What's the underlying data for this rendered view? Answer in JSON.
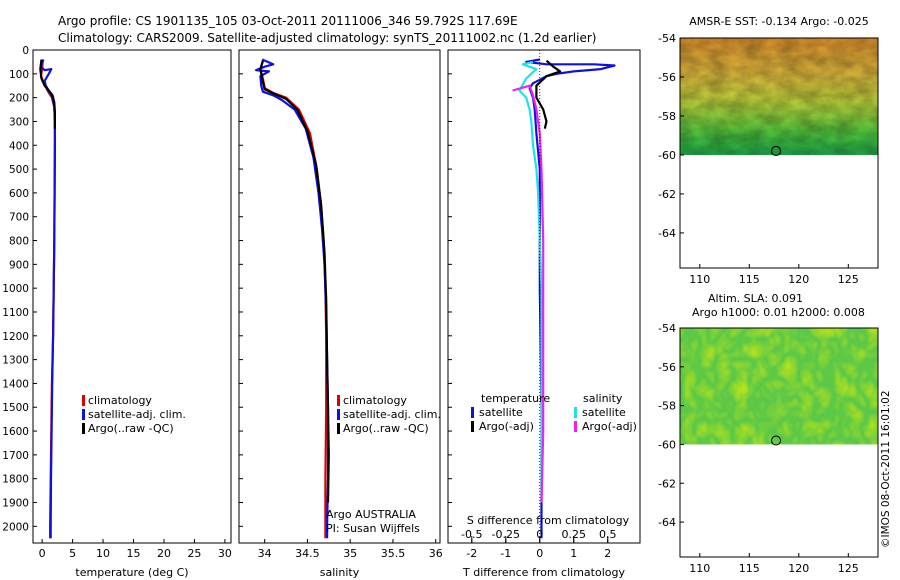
{
  "title_line1": "Argo profile: CS 1901135_105 03-Oct-2011 20111006_346 59.792S 117.69E",
  "title_line2": "Climatology: CARS2009. Satellite-adjusted climatology: synTS_20111002.nc (1.2d earlier)",
  "side_stamp": "©IMOS 08-Oct-2011 16:01:02",
  "info_argo": "Argo AUSTRALIA",
  "info_pi": "PI: Susan Wijffels",
  "colors": {
    "red": "#dd0000",
    "blue": "#1010dd",
    "black": "#000000",
    "cyan": "#20e0e8",
    "magenta": "#ee22ee"
  },
  "chart_data": [
    {
      "type": "line",
      "panel": "temperature",
      "xlabel": "temperature (deg C)",
      "xlim": [
        -1.5,
        31
      ],
      "xticks": [
        0,
        5,
        10,
        15,
        20,
        25,
        30
      ],
      "ylim": [
        0,
        2070
      ],
      "yticks": [
        0,
        100,
        200,
        300,
        400,
        500,
        600,
        700,
        800,
        900,
        1000,
        1100,
        1200,
        1300,
        1400,
        1500,
        1600,
        1700,
        1800,
        1900,
        2000
      ],
      "legend": [
        "climatology",
        "satellite-adj. clim.",
        "Argo(..raw -QC)"
      ],
      "series": [
        {
          "name": "climatology",
          "color": "red",
          "points": [
            [
              0.1,
              45
            ],
            [
              0.0,
              80
            ],
            [
              -0.2,
              110
            ],
            [
              0.5,
              150
            ],
            [
              1.0,
              175
            ],
            [
              1.6,
              200
            ],
            [
              2.0,
              240
            ],
            [
              2.1,
              300
            ],
            [
              2.1,
              400
            ],
            [
              2.05,
              600
            ],
            [
              2.0,
              800
            ],
            [
              1.9,
              1000
            ],
            [
              1.8,
              1200
            ],
            [
              1.6,
              1400
            ],
            [
              1.5,
              1600
            ],
            [
              1.4,
              1800
            ],
            [
              1.3,
              2000
            ],
            [
              1.3,
              2050
            ]
          ]
        },
        {
          "name": "satellite-adj. clim.",
          "color": "blue",
          "points": [
            [
              0.2,
              40
            ],
            [
              -0.2,
              70
            ],
            [
              0.4,
              85
            ],
            [
              1.5,
              80
            ],
            [
              1.1,
              100
            ],
            [
              0.4,
              130
            ],
            [
              0.6,
              150
            ],
            [
              1.2,
              175
            ],
            [
              1.7,
              200
            ],
            [
              2.0,
              240
            ],
            [
              2.1,
              300
            ],
            [
              2.1,
              400
            ],
            [
              2.05,
              600
            ],
            [
              2.0,
              800
            ],
            [
              1.9,
              1000
            ],
            [
              1.8,
              1200
            ],
            [
              1.65,
              1400
            ],
            [
              1.55,
              1600
            ],
            [
              1.45,
              1800
            ],
            [
              1.4,
              2000
            ],
            [
              1.4,
              2050
            ]
          ]
        },
        {
          "name": "Argo(..raw -QC)",
          "color": "black",
          "points": [
            [
              -0.1,
              40
            ],
            [
              -0.3,
              80
            ],
            [
              -0.1,
              120
            ],
            [
              0.4,
              150
            ],
            [
              1.1,
              170
            ],
            [
              1.7,
              190
            ],
            [
              2.0,
              220
            ],
            [
              2.1,
              260
            ],
            [
              2.1,
              330
            ]
          ]
        }
      ]
    },
    {
      "type": "line",
      "panel": "salinity",
      "xlabel": "salinity",
      "xlim": [
        33.7,
        36.05
      ],
      "xticks": [
        34,
        34.5,
        35,
        35.5,
        36
      ],
      "ylim": [
        0,
        2070
      ],
      "legend": [
        "climatology",
        "satellite-adj. clim.",
        "Argo(..raw -QC)"
      ],
      "series": [
        {
          "name": "climatology",
          "color": "red",
          "points": [
            [
              33.98,
              45
            ],
            [
              33.95,
              80
            ],
            [
              33.98,
              120
            ],
            [
              34.0,
              160
            ],
            [
              34.1,
              180
            ],
            [
              34.25,
              200
            ],
            [
              34.4,
              250
            ],
            [
              34.53,
              350
            ],
            [
              34.61,
              500
            ],
            [
              34.66,
              650
            ],
            [
              34.69,
              800
            ],
            [
              34.71,
              1000
            ],
            [
              34.72,
              1200
            ],
            [
              34.72,
              1500
            ],
            [
              34.71,
              1800
            ],
            [
              34.71,
              2000
            ],
            [
              34.71,
              2050
            ]
          ]
        },
        {
          "name": "satellite-adj. clim.",
          "color": "blue",
          "points": [
            [
              33.97,
              40
            ],
            [
              34.1,
              60
            ],
            [
              34.0,
              70
            ],
            [
              33.9,
              85
            ],
            [
              34.05,
              90
            ],
            [
              33.95,
              110
            ],
            [
              33.96,
              150
            ],
            [
              33.98,
              175
            ],
            [
              34.1,
              190
            ],
            [
              34.2,
              210
            ],
            [
              34.35,
              250
            ],
            [
              34.48,
              330
            ],
            [
              34.57,
              450
            ],
            [
              34.63,
              600
            ],
            [
              34.67,
              750
            ],
            [
              34.7,
              900
            ],
            [
              34.72,
              1100
            ],
            [
              34.73,
              1300
            ],
            [
              34.74,
              1500
            ],
            [
              34.74,
              1800
            ],
            [
              34.73,
              2000
            ],
            [
              34.73,
              2050
            ]
          ]
        },
        {
          "name": "Argo(..raw -QC)",
          "color": "black",
          "points": [
            [
              33.98,
              45
            ],
            [
              33.95,
              80
            ],
            [
              33.97,
              120
            ],
            [
              34.0,
              165
            ],
            [
              34.12,
              185
            ],
            [
              34.25,
              205
            ],
            [
              34.38,
              250
            ],
            [
              34.5,
              340
            ],
            [
              34.6,
              480
            ],
            [
              34.66,
              650
            ],
            [
              34.7,
              850
            ],
            [
              34.72,
              1050
            ],
            [
              34.73,
              1300
            ],
            [
              34.74,
              1500
            ],
            [
              34.75,
              1700
            ],
            [
              34.74,
              1900
            ]
          ]
        }
      ]
    },
    {
      "type": "line",
      "panel": "difference",
      "xlabel": "T difference from climatology",
      "xlabel_top": "S difference from climatology",
      "xlim_T": [
        -2.7,
        2.95
      ],
      "xticks_T": [
        -2,
        -1,
        0,
        1,
        2
      ],
      "xticks_S": [
        -0.5,
        -0.25,
        0,
        0.25,
        0.5
      ],
      "s_per_t": 0.25,
      "ylim": [
        0,
        2070
      ],
      "legend_headers": [
        "temperature",
        "salinity"
      ],
      "legend": [
        "satellite",
        "Argo(-adj)",
        "satellite",
        "Argo(-adj)"
      ],
      "series": [
        {
          "name": "temperature satellite",
          "color": "blue",
          "points": [
            [
              0,
              40
            ],
            [
              -0.4,
              50
            ],
            [
              0.2,
              60
            ],
            [
              0.6,
              60
            ],
            [
              1.6,
              60
            ],
            [
              2.2,
              65
            ],
            [
              1.8,
              80
            ],
            [
              1.0,
              90
            ],
            [
              0.5,
              100
            ],
            [
              0.2,
              110
            ],
            [
              -0.2,
              140
            ],
            [
              -0.3,
              160
            ],
            [
              -0.2,
              200
            ],
            [
              -0.15,
              250
            ],
            [
              -0.1,
              350
            ],
            [
              0.0,
              500
            ],
            [
              0.0,
              1000
            ],
            [
              0.05,
              1500
            ],
            [
              0.05,
              2000
            ],
            [
              0.05,
              2050
            ]
          ]
        },
        {
          "name": "temperature Argo(-adj)",
          "color": "black",
          "points": [
            [
              0.2,
              45
            ],
            [
              0.4,
              70
            ],
            [
              0.6,
              90
            ],
            [
              0.2,
              110
            ],
            [
              -0.1,
              150
            ],
            [
              -0.1,
              200
            ],
            [
              0.1,
              250
            ],
            [
              0.2,
              300
            ],
            [
              0.15,
              330
            ]
          ]
        },
        {
          "name": "salinity satellite",
          "color": "cyan",
          "points": [
            [
              -0.2,
              50
            ],
            [
              -0.5,
              60
            ],
            [
              -0.1,
              80
            ],
            [
              -0.4,
              120
            ],
            [
              -0.6,
              170
            ],
            [
              -0.4,
              200
            ],
            [
              -0.3,
              250
            ],
            [
              -0.25,
              300
            ],
            [
              -0.2,
              400
            ],
            [
              -0.1,
              500
            ],
            [
              -0.05,
              600
            ],
            [
              0.0,
              800
            ],
            [
              0.05,
              1000
            ],
            [
              0.05,
              1500
            ],
            [
              0.05,
              1900
            ]
          ]
        },
        {
          "name": "salinity Argo(-adj)",
          "color": "magenta",
          "points": [
            [
              -0.8,
              170
            ],
            [
              -0.3,
              150
            ],
            [
              -0.2,
              190
            ],
            [
              -0.1,
              250
            ],
            [
              0.0,
              350
            ],
            [
              0.05,
              500
            ],
            [
              0.1,
              800
            ],
            [
              0.1,
              1200
            ],
            [
              0.1,
              1600
            ],
            [
              0.05,
              1900
            ]
          ]
        }
      ]
    },
    {
      "type": "heatmap",
      "panel": "sst-map",
      "title": "AMSR-E SST: -0.134 Argo: -0.025",
      "xlim": [
        108,
        128
      ],
      "ylim": [
        -65.8,
        -54
      ],
      "xticks": [
        110,
        115,
        120,
        125
      ],
      "yticks": [
        -54,
        -56,
        -58,
        -60,
        -62,
        -64
      ],
      "data_lat_range": [
        -60,
        -54
      ],
      "marker": [
        117.7,
        -59.8
      ]
    },
    {
      "type": "heatmap",
      "panel": "sla-map",
      "title": "Altim. SLA: 0.091",
      "subtitle": "Argo h1000: 0.01 h2000: 0.008",
      "xlim": [
        108,
        128
      ],
      "ylim": [
        -65.8,
        -54
      ],
      "xticks": [
        110,
        115,
        120,
        125
      ],
      "yticks": [
        -54,
        -56,
        -58,
        -60,
        -62,
        -64
      ],
      "data_lat_range": [
        -60,
        -54
      ],
      "marker": [
        117.7,
        -59.8
      ]
    }
  ]
}
